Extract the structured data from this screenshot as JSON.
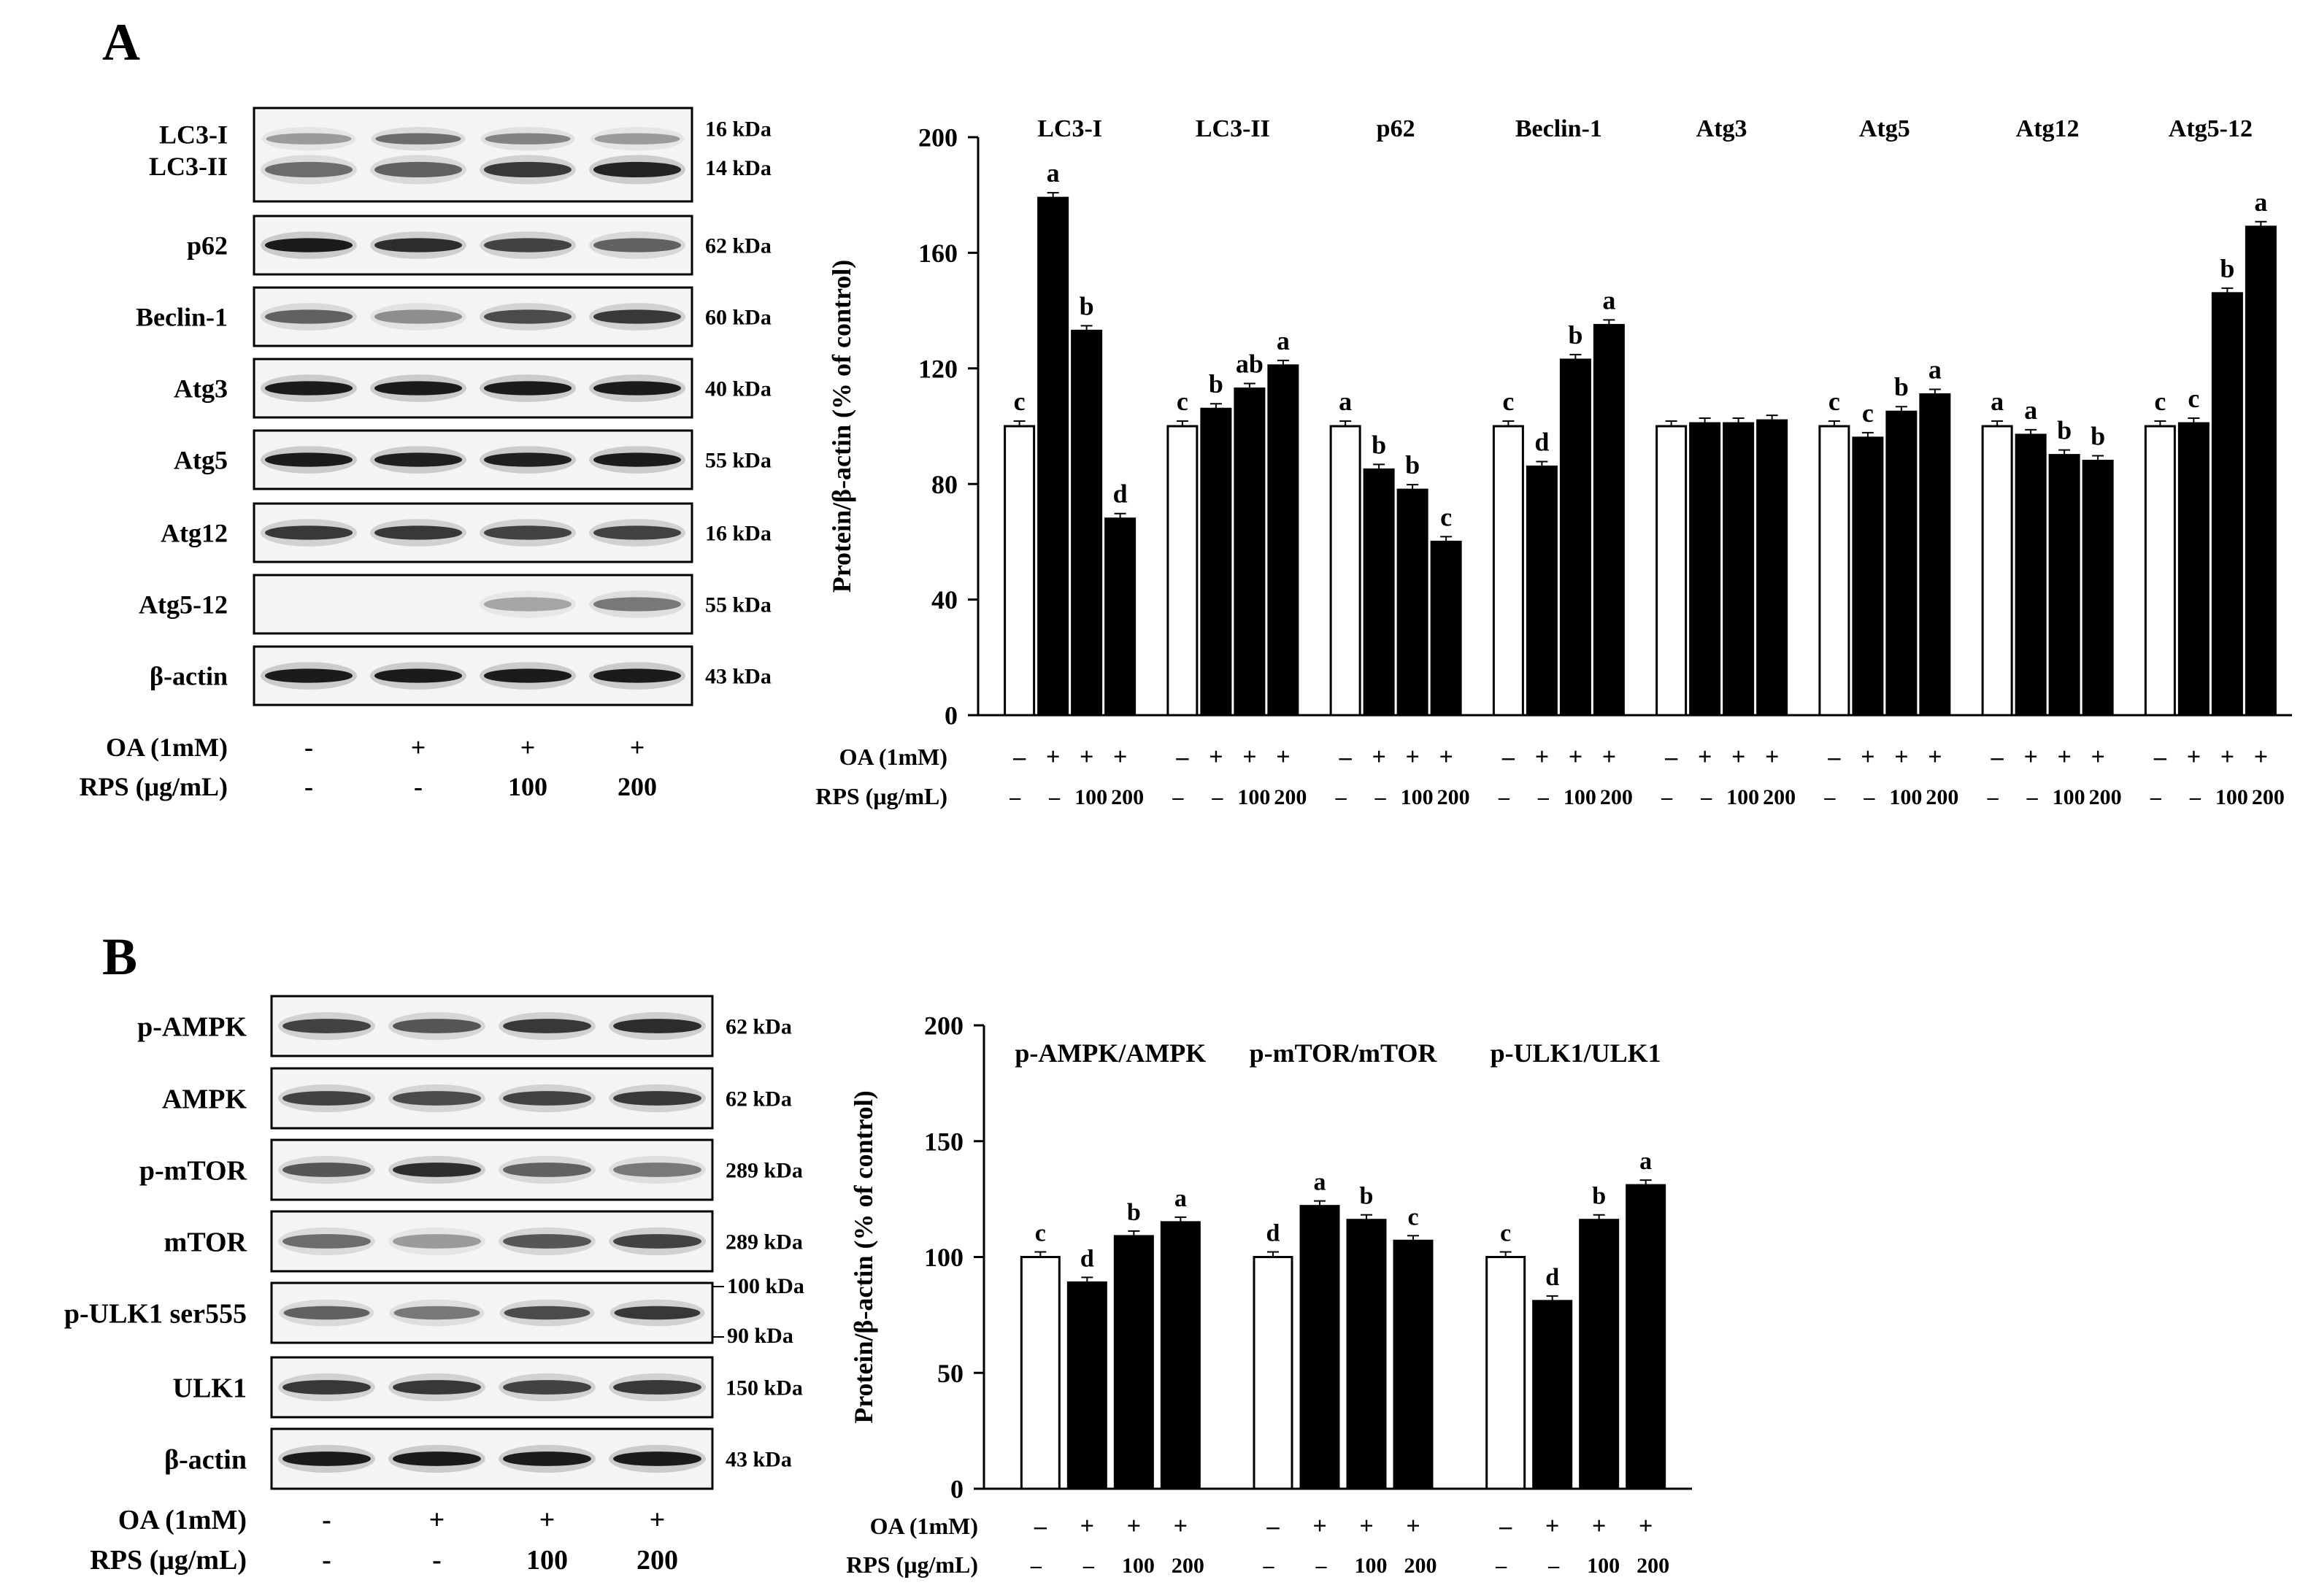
{
  "panels": [
    {
      "id": "A",
      "letter": "A",
      "blot": {
        "boxes": [
          {
            "labels": [
              "LC3-I",
              "LC3-II"
            ],
            "kda": [
              "16 kDa",
              "14 kDa"
            ],
            "type": "lc3"
          },
          {
            "labels": [
              "p62"
            ],
            "kda": [
              "62 kDa"
            ],
            "intensities": [
              0.95,
              0.85,
              0.75,
              0.6
            ]
          },
          {
            "labels": [
              "Beclin-1"
            ],
            "kda": [
              "60 kDa"
            ],
            "intensities": [
              0.6,
              0.4,
              0.7,
              0.8
            ]
          },
          {
            "labels": [
              "Atg3"
            ],
            "kda": [
              "40 kDa"
            ],
            "intensities": [
              0.95,
              0.95,
              0.95,
              0.95
            ]
          },
          {
            "labels": [
              "Atg5"
            ],
            "kda": [
              "55 kDa"
            ],
            "intensities": [
              0.95,
              0.92,
              0.92,
              0.95
            ]
          },
          {
            "labels": [
              "Atg12"
            ],
            "kda": [
              "16 kDa"
            ],
            "intensities": [
              0.8,
              0.8,
              0.75,
              0.75
            ]
          },
          {
            "labels": [
              "Atg5-12"
            ],
            "kda": [
              "55 kDa"
            ],
            "intensities": [
              0.0,
              0.0,
              0.3,
              0.5
            ]
          },
          {
            "labels": [
              "β-actin"
            ],
            "kda": [
              "43 kDa"
            ],
            "intensities": [
              0.95,
              0.95,
              0.95,
              0.95
            ]
          }
        ],
        "treatments": {
          "oa_label": "OA (1mM)",
          "rps_label": "RPS (μg/mL)",
          "oa": [
            "-",
            "+",
            "+",
            "+"
          ],
          "rps": [
            "-",
            "-",
            "100",
            "200"
          ]
        }
      }
    },
    {
      "id": "B",
      "letter": "B",
      "blot": {
        "boxes": [
          {
            "labels": [
              "p-AMPK"
            ],
            "kda": [
              "62 kDa"
            ],
            "intensities": [
              0.75,
              0.65,
              0.8,
              0.85
            ]
          },
          {
            "labels": [
              "AMPK"
            ],
            "kda": [
              "62 kDa"
            ],
            "intensities": [
              0.75,
              0.7,
              0.75,
              0.8
            ]
          },
          {
            "labels": [
              "p-mTOR"
            ],
            "kda": [
              "289 kDa"
            ],
            "intensities": [
              0.65,
              0.85,
              0.6,
              0.5
            ]
          },
          {
            "labels": [
              "mTOR"
            ],
            "kda": [
              "289 kDa"
            ],
            "intensities": [
              0.55,
              0.35,
              0.65,
              0.75
            ]
          },
          {
            "labels": [
              "p-ULK1 ser555"
            ],
            "kda": [
              "100 kDa",
              "90 kDa"
            ],
            "type": "ulk"
          },
          {
            "labels": [
              "ULK1"
            ],
            "kda": [
              "150 kDa"
            ],
            "intensities": [
              0.8,
              0.8,
              0.75,
              0.8
            ]
          },
          {
            "labels": [
              "β-actin"
            ],
            "kda": [
              "43 kDa"
            ],
            "intensities": [
              0.95,
              0.95,
              0.95,
              0.95
            ]
          }
        ],
        "treatments": {
          "oa_label": "OA (1mM)",
          "rps_label": "RPS (μg/mL)",
          "oa": [
            "-",
            "+",
            "+",
            "+"
          ],
          "rps": [
            "-",
            "-",
            "100",
            "200"
          ]
        }
      }
    }
  ],
  "chart_data": [
    {
      "panel": "A",
      "type": "bar",
      "ylabel": "Protein/β-actin (% of control)",
      "ylim": [
        0,
        200
      ],
      "yticks": [
        0,
        40,
        80,
        120,
        160,
        200
      ],
      "bar_colors": [
        "#ffffff",
        "#000000",
        "#000000",
        "#000000"
      ],
      "groups": [
        {
          "name": "LC3-I",
          "values": [
            100,
            179,
            133,
            68
          ],
          "letters": [
            "c",
            "a",
            "b",
            "d"
          ]
        },
        {
          "name": "LC3-II",
          "values": [
            100,
            106,
            113,
            121
          ],
          "letters": [
            "c",
            "b",
            "ab",
            "a"
          ]
        },
        {
          "name": "p62",
          "values": [
            100,
            85,
            78,
            60
          ],
          "letters": [
            "a",
            "b",
            "b",
            "c"
          ]
        },
        {
          "name": "Beclin-1",
          "values": [
            100,
            86,
            123,
            135
          ],
          "letters": [
            "c",
            "d",
            "b",
            "a"
          ]
        },
        {
          "name": "Atg3",
          "values": [
            100,
            101,
            101,
            102
          ],
          "letters": [
            "",
            "",
            "",
            ""
          ]
        },
        {
          "name": "Atg5",
          "values": [
            100,
            96,
            105,
            111
          ],
          "letters": [
            "c",
            "c",
            "b",
            "a"
          ]
        },
        {
          "name": "Atg12",
          "values": [
            100,
            97,
            90,
            88
          ],
          "letters": [
            "a",
            "a",
            "b",
            "b"
          ]
        },
        {
          "name": "Atg5-12",
          "values": [
            100,
            101,
            146,
            169
          ],
          "letters": [
            "c",
            "c",
            "b",
            "a"
          ]
        }
      ],
      "oa_label": "OA (1mM)",
      "rps_label": "RPS (μg/mL)",
      "oa": [
        "–",
        "+",
        "+",
        "+"
      ],
      "rps": [
        "–",
        "–",
        "100",
        "200"
      ]
    },
    {
      "panel": "B",
      "type": "bar",
      "ylabel": "Protein/β-actin (% of control)",
      "ylim": [
        0,
        200
      ],
      "yticks": [
        0,
        50,
        100,
        150,
        200
      ],
      "bar_colors": [
        "#ffffff",
        "#000000",
        "#000000",
        "#000000"
      ],
      "groups": [
        {
          "name": "p-AMPK/AMPK",
          "values": [
            100,
            89,
            109,
            115
          ],
          "letters": [
            "c",
            "d",
            "b",
            "a"
          ]
        },
        {
          "name": "p-mTOR/mTOR",
          "values": [
            100,
            122,
            116,
            107
          ],
          "letters": [
            "d",
            "a",
            "b",
            "c"
          ]
        },
        {
          "name": "p-ULK1/ULK1",
          "values": [
            100,
            81,
            116,
            131
          ],
          "letters": [
            "c",
            "d",
            "b",
            "a"
          ]
        }
      ],
      "oa_label": "OA (1mM)",
      "rps_label": "RPS (μg/mL)",
      "oa": [
        "–",
        "+",
        "+",
        "+"
      ],
      "rps": [
        "–",
        "–",
        "100",
        "200"
      ]
    }
  ]
}
